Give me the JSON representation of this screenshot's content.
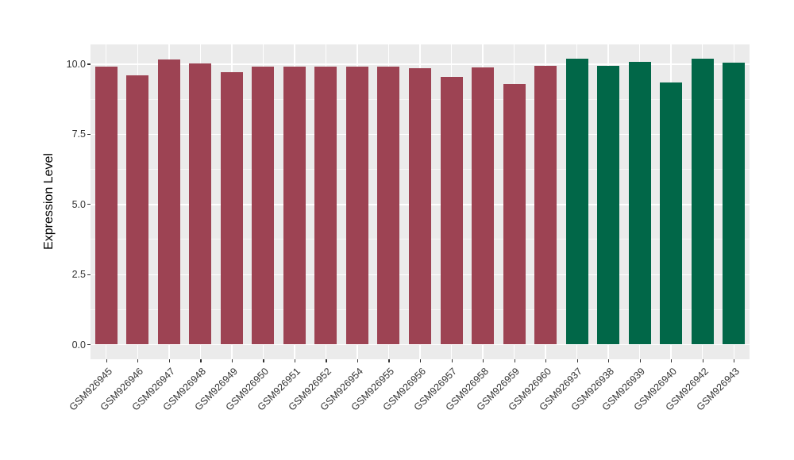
{
  "chart_data": {
    "type": "bar",
    "title": "",
    "xlabel": "",
    "ylabel": "Expression Level",
    "ylim": [
      -0.54,
      10.69
    ],
    "yticks": [
      0.0,
      2.5,
      5.0,
      7.5,
      10.0
    ],
    "ytick_labels": [
      "0.0",
      "2.5",
      "5.0",
      "7.5",
      "10.0"
    ],
    "grid": "on",
    "legend": "none",
    "panel_background": "#EBEBEB",
    "categories": [
      "GSM926945",
      "GSM926946",
      "GSM926947",
      "GSM926948",
      "GSM926949",
      "GSM926950",
      "GSM926951",
      "GSM926952",
      "GSM926954",
      "GSM926955",
      "GSM926956",
      "GSM926957",
      "GSM926958",
      "GSM926959",
      "GSM926960",
      "GSM926937",
      "GSM926938",
      "GSM926939",
      "GSM926940",
      "GSM926942",
      "GSM926943"
    ],
    "values": [
      9.91,
      9.6,
      10.14,
      10.02,
      9.71,
      9.9,
      9.9,
      9.91,
      9.9,
      9.9,
      9.85,
      9.53,
      9.88,
      9.28,
      9.93,
      10.17,
      9.94,
      10.06,
      9.32,
      10.17,
      10.03
    ],
    "bar_colors": [
      "#9D4353",
      "#9D4353",
      "#9D4353",
      "#9D4353",
      "#9D4353",
      "#9D4353",
      "#9D4353",
      "#9D4353",
      "#9D4353",
      "#9D4353",
      "#9D4353",
      "#9D4353",
      "#9D4353",
      "#9D4353",
      "#9D4353",
      "#016748",
      "#016748",
      "#016748",
      "#016748",
      "#016748",
      "#016748"
    ],
    "group_colors": {
      "left_group": "#9D4353",
      "right_group": "#016748"
    }
  }
}
